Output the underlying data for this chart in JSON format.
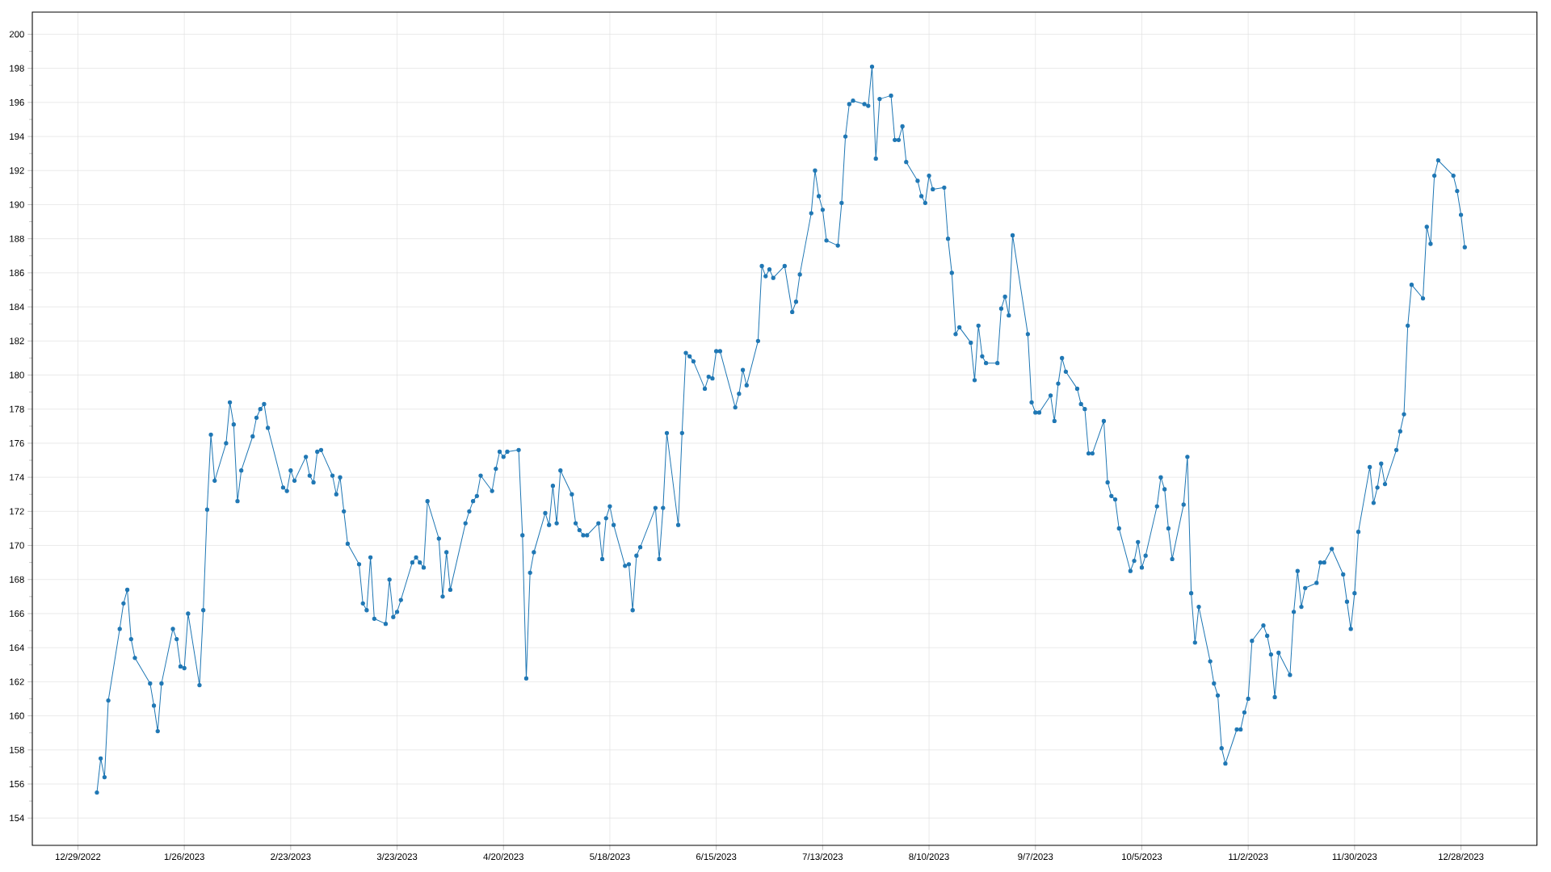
{
  "chart_data": {
    "type": "line",
    "xlim": [
      "2022-12-17",
      "2024-01-17"
    ],
    "xticks": [
      {
        "value": "2022-12-29",
        "label": "12/29/2022"
      },
      {
        "value": "2023-01-26",
        "label": "1/26/2023"
      },
      {
        "value": "2023-02-23",
        "label": "2/23/2023"
      },
      {
        "value": "2023-03-23",
        "label": "3/23/2023"
      },
      {
        "value": "2023-04-20",
        "label": "4/20/2023"
      },
      {
        "value": "2023-05-18",
        "label": "5/18/2023"
      },
      {
        "value": "2023-06-15",
        "label": "6/15/2023"
      },
      {
        "value": "2023-07-13",
        "label": "7/13/2023"
      },
      {
        "value": "2023-08-10",
        "label": "8/10/2023"
      },
      {
        "value": "2023-09-07",
        "label": "9/7/2023"
      },
      {
        "value": "2023-10-05",
        "label": "10/5/2023"
      },
      {
        "value": "2023-11-02",
        "label": "11/2/2023"
      },
      {
        "value": "2023-11-30",
        "label": "11/30/2023"
      },
      {
        "value": "2023-12-28",
        "label": "12/28/2023"
      }
    ],
    "ylim": [
      152.4,
      201.3
    ],
    "yticks": [
      154,
      156,
      158,
      160,
      162,
      164,
      166,
      168,
      170,
      172,
      174,
      176,
      178,
      180,
      182,
      184,
      186,
      188,
      190,
      192,
      194,
      196,
      198,
      200
    ],
    "grid": true,
    "marker": "circle",
    "line_style": "solid",
    "series": [
      {
        "color": "#1f77b4",
        "x": [
          "2023-01-03",
          "2023-01-04",
          "2023-01-05",
          "2023-01-06",
          "2023-01-09",
          "2023-01-10",
          "2023-01-11",
          "2023-01-12",
          "2023-01-13",
          "2023-01-17",
          "2023-01-18",
          "2023-01-19",
          "2023-01-20",
          "2023-01-23",
          "2023-01-24",
          "2023-01-25",
          "2023-01-26",
          "2023-01-27",
          "2023-01-30",
          "2023-01-31",
          "2023-02-01",
          "2023-02-02",
          "2023-02-03",
          "2023-02-06",
          "2023-02-07",
          "2023-02-08",
          "2023-02-09",
          "2023-02-10",
          "2023-02-13",
          "2023-02-14",
          "2023-02-15",
          "2023-02-16",
          "2023-02-17",
          "2023-02-21",
          "2023-02-22",
          "2023-02-23",
          "2023-02-24",
          "2023-02-27",
          "2023-02-28",
          "2023-03-01",
          "2023-03-02",
          "2023-03-03",
          "2023-03-06",
          "2023-03-07",
          "2023-03-08",
          "2023-03-09",
          "2023-03-10",
          "2023-03-13",
          "2023-03-14",
          "2023-03-15",
          "2023-03-16",
          "2023-03-17",
          "2023-03-20",
          "2023-03-21",
          "2023-03-22",
          "2023-03-23",
          "2023-03-24",
          "2023-03-27",
          "2023-03-28",
          "2023-03-29",
          "2023-03-30",
          "2023-03-31",
          "2023-04-03",
          "2023-04-04",
          "2023-04-05",
          "2023-04-06",
          "2023-04-10",
          "2023-04-11",
          "2023-04-12",
          "2023-04-13",
          "2023-04-14",
          "2023-04-17",
          "2023-04-18",
          "2023-04-19",
          "2023-04-20",
          "2023-04-21",
          "2023-04-24",
          "2023-04-25",
          "2023-04-26",
          "2023-04-27",
          "2023-04-28",
          "2023-05-01",
          "2023-05-02",
          "2023-05-03",
          "2023-05-04",
          "2023-05-05",
          "2023-05-08",
          "2023-05-09",
          "2023-05-10",
          "2023-05-11",
          "2023-05-12",
          "2023-05-15",
          "2023-05-16",
          "2023-05-17",
          "2023-05-18",
          "2023-05-19",
          "2023-05-22",
          "2023-05-23",
          "2023-05-24",
          "2023-05-25",
          "2023-05-26",
          "2023-05-30",
          "2023-05-31",
          "2023-06-01",
          "2023-06-02",
          "2023-06-05",
          "2023-06-06",
          "2023-06-07",
          "2023-06-08",
          "2023-06-09",
          "2023-06-12",
          "2023-06-13",
          "2023-06-14",
          "2023-06-15",
          "2023-06-16",
          "2023-06-20",
          "2023-06-21",
          "2023-06-22",
          "2023-06-23",
          "2023-06-26",
          "2023-06-27",
          "2023-06-28",
          "2023-06-29",
          "2023-06-30",
          "2023-07-03",
          "2023-07-05",
          "2023-07-06",
          "2023-07-07",
          "2023-07-10",
          "2023-07-11",
          "2023-07-12",
          "2023-07-13",
          "2023-07-14",
          "2023-07-17",
          "2023-07-18",
          "2023-07-19",
          "2023-07-20",
          "2023-07-21",
          "2023-07-24",
          "2023-07-25",
          "2023-07-26",
          "2023-07-27",
          "2023-07-28",
          "2023-07-31",
          "2023-08-01",
          "2023-08-02",
          "2023-08-03",
          "2023-08-04",
          "2023-08-07",
          "2023-08-08",
          "2023-08-09",
          "2023-08-10",
          "2023-08-11",
          "2023-08-14",
          "2023-08-15",
          "2023-08-16",
          "2023-08-17",
          "2023-08-18",
          "2023-08-21",
          "2023-08-22",
          "2023-08-23",
          "2023-08-24",
          "2023-08-25",
          "2023-08-28",
          "2023-08-29",
          "2023-08-30",
          "2023-08-31",
          "2023-09-01",
          "2023-09-05",
          "2023-09-06",
          "2023-09-07",
          "2023-09-08",
          "2023-09-11",
          "2023-09-12",
          "2023-09-13",
          "2023-09-14",
          "2023-09-15",
          "2023-09-18",
          "2023-09-19",
          "2023-09-20",
          "2023-09-21",
          "2023-09-22",
          "2023-09-25",
          "2023-09-26",
          "2023-09-27",
          "2023-09-28",
          "2023-09-29",
          "2023-10-02",
          "2023-10-03",
          "2023-10-04",
          "2023-10-05",
          "2023-10-06",
          "2023-10-09",
          "2023-10-10",
          "2023-10-11",
          "2023-10-12",
          "2023-10-13",
          "2023-10-16",
          "2023-10-17",
          "2023-10-18",
          "2023-10-19",
          "2023-10-20",
          "2023-10-23",
          "2023-10-24",
          "2023-10-25",
          "2023-10-26",
          "2023-10-27",
          "2023-10-30",
          "2023-10-31",
          "2023-11-01",
          "2023-11-02",
          "2023-11-03",
          "2023-11-06",
          "2023-11-07",
          "2023-11-08",
          "2023-11-09",
          "2023-11-10",
          "2023-11-13",
          "2023-11-14",
          "2023-11-15",
          "2023-11-16",
          "2023-11-17",
          "2023-11-20",
          "2023-11-21",
          "2023-11-22",
          "2023-11-24",
          "2023-11-27",
          "2023-11-28",
          "2023-11-29",
          "2023-11-30",
          "2023-12-01",
          "2023-12-04",
          "2023-12-05",
          "2023-12-06",
          "2023-12-07",
          "2023-12-08",
          "2023-12-11",
          "2023-12-12",
          "2023-12-13",
          "2023-12-14",
          "2023-12-15",
          "2023-12-18",
          "2023-12-19",
          "2023-12-20",
          "2023-12-21",
          "2023-12-22",
          "2023-12-26",
          "2023-12-27",
          "2023-12-28",
          "2023-12-29"
        ],
        "values": [
          155.5,
          157.5,
          156.4,
          160.9,
          165.1,
          166.6,
          167.4,
          164.5,
          163.4,
          161.9,
          160.6,
          159.1,
          161.9,
          165.1,
          164.5,
          162.9,
          162.8,
          166.0,
          161.8,
          166.2,
          172.1,
          176.5,
          173.8,
          176.0,
          178.4,
          177.1,
          172.6,
          174.4,
          176.4,
          177.5,
          178.0,
          178.3,
          176.9,
          173.4,
          173.2,
          174.4,
          173.8,
          175.2,
          174.1,
          173.7,
          175.5,
          175.6,
          174.1,
          173.0,
          174.0,
          172.0,
          170.1,
          168.9,
          166.6,
          166.2,
          169.3,
          165.7,
          165.4,
          168.0,
          165.8,
          166.1,
          166.8,
          169.0,
          169.3,
          169.0,
          168.7,
          172.6,
          170.4,
          167.0,
          169.6,
          167.4,
          171.3,
          172.0,
          172.6,
          172.9,
          174.1,
          173.2,
          174.5,
          175.5,
          175.2,
          175.5,
          175.6,
          170.6,
          162.2,
          168.4,
          169.6,
          171.9,
          171.2,
          173.5,
          171.3,
          174.4,
          173.0,
          171.3,
          170.9,
          170.6,
          170.6,
          171.3,
          169.2,
          171.6,
          172.3,
          171.2,
          168.8,
          168.9,
          166.2,
          169.4,
          169.9,
          172.2,
          169.2,
          172.2,
          176.6,
          171.2,
          176.6,
          181.3,
          181.1,
          180.8,
          179.2,
          179.9,
          179.8,
          181.4,
          181.4,
          178.1,
          178.9,
          180.3,
          179.4,
          182.0,
          186.4,
          185.8,
          186.2,
          185.7,
          186.4,
          183.7,
          184.3,
          185.9,
          189.5,
          192.0,
          190.5,
          189.7,
          187.9,
          187.6,
          190.1,
          194.0,
          195.9,
          196.1,
          195.9,
          195.8,
          198.1,
          192.7,
          196.2,
          196.4,
          193.8,
          193.8,
          194.6,
          192.5,
          191.4,
          190.5,
          190.1,
          191.7,
          190.9,
          191.0,
          188.0,
          186.0,
          182.4,
          182.8,
          181.9,
          179.7,
          182.9,
          181.1,
          180.7,
          180.7,
          183.9,
          184.6,
          183.5,
          188.2,
          182.4,
          178.4,
          177.8,
          177.8,
          178.8,
          177.3,
          179.5,
          181.0,
          180.2,
          179.2,
          178.3,
          178.0,
          175.4,
          175.4,
          177.3,
          173.7,
          172.9,
          172.7,
          171.0,
          168.5,
          169.1,
          170.2,
          168.7,
          169.4,
          172.3,
          174.0,
          173.3,
          171.0,
          169.2,
          172.4,
          175.2,
          167.2,
          164.3,
          166.4,
          163.2,
          161.9,
          161.2,
          158.1,
          157.2,
          159.2,
          159.2,
          160.2,
          161.0,
          164.4,
          165.3,
          164.7,
          163.6,
          161.1,
          163.7,
          162.4,
          166.1,
          168.5,
          166.4,
          167.5,
          167.8,
          169.0,
          169.0,
          169.8,
          168.3,
          166.7,
          165.1,
          167.2,
          170.8,
          174.6,
          172.5,
          173.4,
          174.8,
          173.6,
          175.6,
          176.7,
          177.7,
          182.9,
          185.3,
          184.5,
          188.7,
          187.7,
          191.7,
          192.6,
          191.7,
          190.8,
          189.4,
          187.5
        ]
      }
    ]
  }
}
